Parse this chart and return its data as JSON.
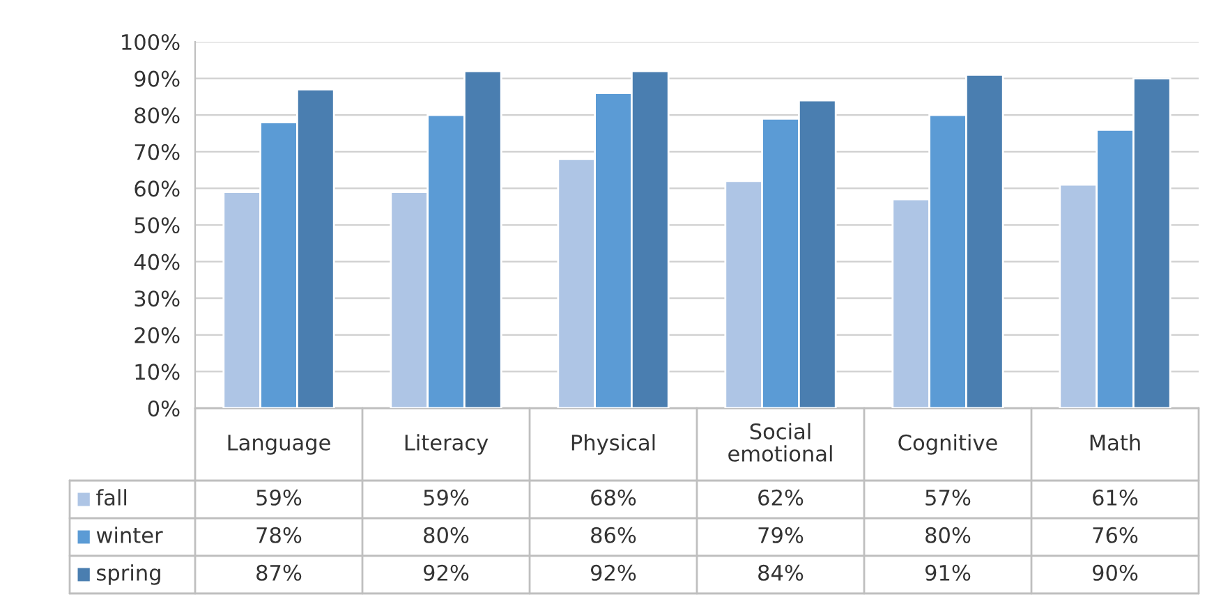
{
  "chart_data": {
    "type": "bar",
    "categories": [
      "Language",
      "Literacy",
      "Physical",
      "Social\nemotional",
      "Cognitive",
      "Math"
    ],
    "series": [
      {
        "name": "fall",
        "color": "#aec5e5",
        "values": [
          59,
          59,
          68,
          62,
          57,
          61
        ],
        "value_labels": [
          "59%",
          "59%",
          "68%",
          "62%",
          "57%",
          "61%"
        ]
      },
      {
        "name": "winter",
        "color": "#5b9bd5",
        "values": [
          78,
          80,
          86,
          79,
          80,
          76
        ],
        "value_labels": [
          "78%",
          "80%",
          "86%",
          "79%",
          "80%",
          "76%"
        ]
      },
      {
        "name": "spring",
        "color": "#4a7eb0",
        "values": [
          87,
          92,
          92,
          84,
          91,
          90
        ],
        "value_labels": [
          "87%",
          "92%",
          "92%",
          "84%",
          "91%",
          "90%"
        ]
      }
    ],
    "ylim": [
      0,
      100
    ],
    "yticks": [
      {
        "value": 0,
        "label": "0%"
      },
      {
        "value": 10,
        "label": "10%"
      },
      {
        "value": 20,
        "label": "20%"
      },
      {
        "value": 30,
        "label": "30%"
      },
      {
        "value": 40,
        "label": "40%"
      },
      {
        "value": 50,
        "label": "50%"
      },
      {
        "value": 60,
        "label": "60%"
      },
      {
        "value": 70,
        "label": "70%"
      },
      {
        "value": 80,
        "label": "80%"
      },
      {
        "value": 90,
        "label": "90%"
      },
      {
        "value": 100,
        "label": "100%"
      }
    ],
    "grid": "y",
    "legend": "bottom left"
  }
}
